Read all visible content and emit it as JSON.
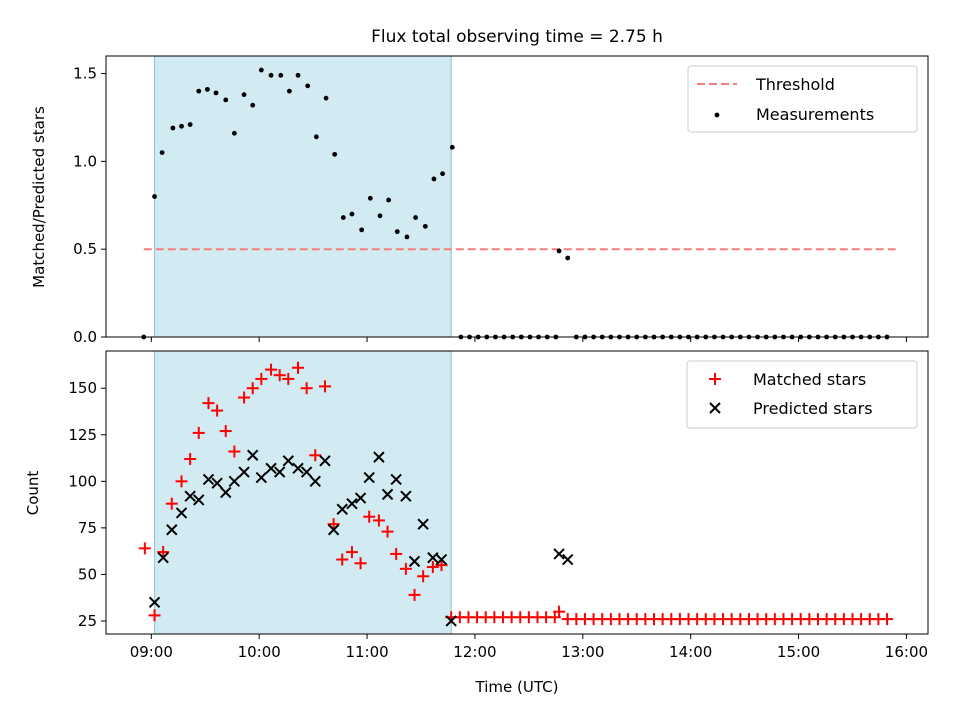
{
  "figure": {
    "title": "Flux total observing time = 2.75 h"
  },
  "colors": {
    "span": "#add8e6",
    "threshold": "#f08080",
    "measurement": "#000000",
    "matched": "#ff0000",
    "predicted": "#000000"
  },
  "chart_data": [
    {
      "type": "scatter",
      "panel": "top",
      "title": "Flux total observing time = 2.75 h",
      "xlabel": "",
      "ylabel": "Matched/Predicted stars",
      "xlim": [
        8.58,
        16.2
      ],
      "ylim": [
        0.0,
        1.6
      ],
      "xticks": [
        9,
        10,
        11,
        12,
        13,
        14,
        15,
        16
      ],
      "xticklabels": [
        "",
        "",
        "",
        "",
        "",
        "",
        "",
        ""
      ],
      "yticks": [
        0.0,
        0.5,
        1.0,
        1.5
      ],
      "yticklabels": [
        "0.0",
        "0.5",
        "1.0",
        "1.5"
      ],
      "highlight_span": [
        9.03,
        11.78
      ],
      "legend_position": "upper right",
      "legend": [
        {
          "label": "Threshold",
          "kind": "dashed-line",
          "color": "#f08080"
        },
        {
          "label": "Measurements",
          "kind": "dot",
          "color": "#000000"
        }
      ],
      "threshold": {
        "name": "Threshold",
        "y": 0.5,
        "x_range": [
          8.93,
          15.9
        ]
      },
      "series": [
        {
          "name": "Measurements",
          "marker": "dot",
          "x": [
            8.93,
            9.03,
            9.1,
            9.2,
            9.28,
            9.36,
            9.44,
            9.52,
            9.6,
            9.69,
            9.77,
            9.86,
            9.94,
            10.02,
            10.11,
            10.2,
            10.28,
            10.36,
            10.45,
            10.53,
            10.62,
            10.7,
            10.78,
            10.86,
            10.95,
            11.03,
            11.12,
            11.2,
            11.28,
            11.37,
            11.45,
            11.54,
            11.62,
            11.7,
            11.79,
            11.87,
            11.95,
            12.03,
            12.11,
            12.19,
            12.27,
            12.35,
            12.43,
            12.51,
            12.59,
            12.67,
            12.75,
            12.78,
            12.86,
            12.94,
            13.02,
            13.1,
            13.18,
            13.26,
            13.34,
            13.42,
            13.5,
            13.58,
            13.66,
            13.74,
            13.82,
            13.9,
            13.98,
            14.06,
            14.14,
            14.22,
            14.3,
            14.38,
            14.46,
            14.54,
            14.62,
            14.7,
            14.78,
            14.86,
            14.94,
            15.02,
            15.1,
            15.18,
            15.26,
            15.34,
            15.42,
            15.5,
            15.58,
            15.66,
            15.74,
            15.82
          ],
          "y": [
            0.0,
            0.8,
            1.05,
            1.19,
            1.2,
            1.21,
            1.4,
            1.41,
            1.39,
            1.35,
            1.16,
            1.38,
            1.32,
            1.52,
            1.49,
            1.49,
            1.4,
            1.49,
            1.43,
            1.14,
            1.36,
            1.04,
            0.68,
            0.7,
            0.61,
            0.79,
            0.69,
            0.78,
            0.6,
            0.57,
            0.68,
            0.63,
            0.9,
            0.93,
            1.08,
            0.0,
            0.0,
            0.0,
            0.0,
            0.0,
            0.0,
            0.0,
            0.0,
            0.0,
            0.0,
            0.0,
            0.0,
            0.49,
            0.45,
            0.0,
            0.0,
            0.0,
            0.0,
            0.0,
            0.0,
            0.0,
            0.0,
            0.0,
            0.0,
            0.0,
            0.0,
            0.0,
            0.0,
            0.0,
            0.0,
            0.0,
            0.0,
            0.0,
            0.0,
            0.0,
            0.0,
            0.0,
            0.0,
            0.0,
            0.0,
            0.0,
            0.0,
            0.0,
            0.0,
            0.0,
            0.0,
            0.0,
            0.0,
            0.0,
            0.0,
            0.0
          ]
        }
      ]
    },
    {
      "type": "scatter",
      "panel": "bottom",
      "xlabel": "Time (UTC)",
      "ylabel": "Count",
      "xlim": [
        8.58,
        16.2
      ],
      "ylim": [
        18,
        170
      ],
      "xticks": [
        9,
        10,
        11,
        12,
        13,
        14,
        15,
        16
      ],
      "xticklabels": [
        "09:00",
        "10:00",
        "11:00",
        "12:00",
        "13:00",
        "14:00",
        "15:00",
        "16:00"
      ],
      "yticks": [
        25,
        50,
        75,
        100,
        125,
        150
      ],
      "yticklabels": [
        "25",
        "50",
        "75",
        "100",
        "125",
        "150"
      ],
      "highlight_span": [
        9.03,
        11.78
      ],
      "legend_position": "upper right",
      "legend": [
        {
          "label": "Matched stars",
          "kind": "plus",
          "color": "#ff0000"
        },
        {
          "label": "Predicted stars",
          "kind": "cross",
          "color": "#000000"
        }
      ],
      "series": [
        {
          "name": "Matched stars",
          "marker": "plus",
          "x": [
            8.94,
            9.03,
            9.11,
            9.19,
            9.28,
            9.36,
            9.44,
            9.53,
            9.61,
            9.69,
            9.77,
            9.86,
            9.94,
            10.02,
            10.11,
            10.19,
            10.27,
            10.36,
            10.44,
            10.52,
            10.61,
            10.69,
            10.77,
            10.86,
            10.94,
            11.02,
            11.11,
            11.19,
            11.27,
            11.36,
            11.44,
            11.52,
            11.61,
            11.69,
            11.78,
            11.86,
            11.94,
            12.02,
            12.1,
            12.18,
            12.26,
            12.34,
            12.42,
            12.5,
            12.58,
            12.66,
            12.74,
            12.78,
            12.86,
            12.94,
            13.02,
            13.1,
            13.18,
            13.26,
            13.34,
            13.42,
            13.5,
            13.58,
            13.66,
            13.74,
            13.82,
            13.9,
            13.98,
            14.06,
            14.14,
            14.22,
            14.3,
            14.38,
            14.46,
            14.54,
            14.62,
            14.7,
            14.78,
            14.86,
            14.94,
            15.02,
            15.1,
            15.18,
            15.26,
            15.34,
            15.42,
            15.5,
            15.58,
            15.66,
            15.74,
            15.82
          ],
          "y": [
            64,
            28,
            62,
            88,
            100,
            112,
            126,
            142,
            138,
            127,
            116,
            145,
            150,
            155,
            160,
            157,
            155,
            161,
            150,
            114,
            151,
            77,
            58,
            62,
            56,
            81,
            79,
            73,
            61,
            53,
            39,
            49,
            54,
            55,
            27,
            27,
            27,
            27,
            27,
            27,
            27,
            27,
            27,
            27,
            27,
            27,
            27,
            30,
            26,
            26,
            26,
            26,
            26,
            26,
            26,
            26,
            26,
            26,
            26,
            26,
            26,
            26,
            26,
            26,
            26,
            26,
            26,
            26,
            26,
            26,
            26,
            26,
            26,
            26,
            26,
            26,
            26,
            26,
            26,
            26,
            26,
            26,
            26,
            26,
            26,
            26
          ]
        },
        {
          "name": "Predicted stars",
          "marker": "cross",
          "x": [
            9.03,
            9.11,
            9.19,
            9.28,
            9.36,
            9.44,
            9.53,
            9.61,
            9.69,
            9.77,
            9.86,
            9.94,
            10.02,
            10.11,
            10.19,
            10.27,
            10.36,
            10.44,
            10.52,
            10.61,
            10.69,
            10.77,
            10.86,
            10.94,
            11.02,
            11.11,
            11.19,
            11.27,
            11.36,
            11.44,
            11.52,
            11.61,
            11.69,
            11.78,
            12.78,
            12.86
          ],
          "y": [
            35,
            59,
            74,
            83,
            92,
            90,
            101,
            99,
            94,
            100,
            105,
            114,
            102,
            107,
            105,
            111,
            107,
            105,
            100,
            111,
            74,
            85,
            88,
            91,
            102,
            113,
            93,
            101,
            92,
            57,
            77,
            59,
            58,
            25,
            61,
            58
          ]
        }
      ]
    }
  ]
}
